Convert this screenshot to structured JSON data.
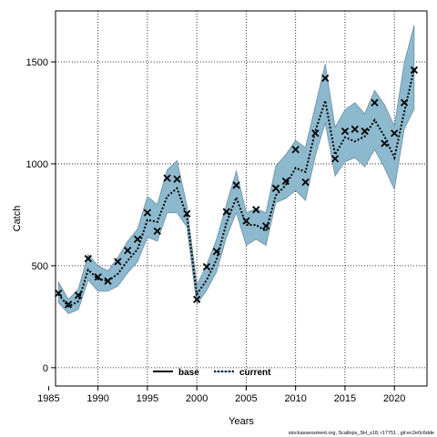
{
  "chart_data": {
    "type": "line",
    "xlabel": "Years",
    "ylabel": "Catch",
    "xlim": [
      1985.7,
      2023.3
    ],
    "ylim": [
      -90,
      1750
    ],
    "xticks": [
      1985,
      1990,
      1995,
      2000,
      2005,
      2010,
      2015,
      2020
    ],
    "yticks": [
      0,
      500,
      1000,
      1500
    ],
    "grid": true,
    "legend_position": "bottom-center",
    "colors": {
      "band": "#8db9ce",
      "band_edge": "#6f8fa3",
      "line": "#000000",
      "current": "#000000"
    },
    "x": [
      1986,
      1987,
      1988,
      1989,
      1990,
      1991,
      1992,
      1993,
      1994,
      1995,
      1996,
      1997,
      1998,
      1999,
      2000,
      2001,
      2002,
      2003,
      2004,
      2005,
      2006,
      2007,
      2008,
      2009,
      2010,
      2011,
      2012,
      2013,
      2014,
      2015,
      2016,
      2017,
      2018,
      2019,
      2020,
      2021,
      2022
    ],
    "observed": [
      365,
      310,
      355,
      535,
      445,
      425,
      520,
      575,
      630,
      760,
      670,
      930,
      925,
      755,
      335,
      495,
      570,
      765,
      895,
      720,
      775,
      695,
      880,
      915,
      1070,
      910,
      1150,
      1420,
      1025,
      1160,
      1170,
      1160,
      1300,
      1100,
      1150,
      1300,
      1460
    ],
    "series": [
      {
        "name": "base",
        "style": "solid",
        "values": [
          360,
          300,
          325,
          480,
          435,
          425,
          460,
          525,
          580,
          725,
          715,
          840,
          880,
          745,
          360,
          430,
          530,
          710,
          835,
          700,
          700,
          670,
          845,
          895,
          980,
          960,
          1160,
          1310,
          1045,
          1130,
          1110,
          1135,
          1215,
          1135,
          1030,
          1255,
          1465
        ]
      },
      {
        "name": "current",
        "style": "dotted",
        "values": [
          360,
          300,
          325,
          480,
          435,
          425,
          460,
          525,
          580,
          725,
          715,
          840,
          880,
          745,
          360,
          430,
          530,
          710,
          835,
          700,
          700,
          670,
          845,
          895,
          980,
          960,
          1160,
          1310,
          1045,
          1130,
          1110,
          1135,
          1215,
          1135,
          1030,
          1255,
          1465
        ]
      }
    ],
    "band_lower": [
      320,
      265,
      285,
      430,
      375,
      375,
      400,
      465,
      520,
      640,
      620,
      760,
      760,
      690,
      310,
      380,
      470,
      640,
      760,
      600,
      630,
      600,
      810,
      830,
      870,
      820,
      1040,
      1200,
      940,
      1010,
      1030,
      985,
      1070,
      980,
      875,
      1170,
      1270
    ],
    "band_upper": [
      420,
      335,
      385,
      555,
      500,
      475,
      540,
      620,
      680,
      840,
      800,
      970,
      1015,
      795,
      405,
      505,
      630,
      800,
      965,
      760,
      780,
      760,
      990,
      1045,
      1115,
      1080,
      1285,
      1490,
      1180,
      1265,
      1300,
      1245,
      1360,
      1290,
      1185,
      1495,
      1680
    ]
  },
  "footer": {
    "credit": "stockassessment.org, Scallops_SH_s18, r17751 , git:ec2e0c6dde"
  }
}
